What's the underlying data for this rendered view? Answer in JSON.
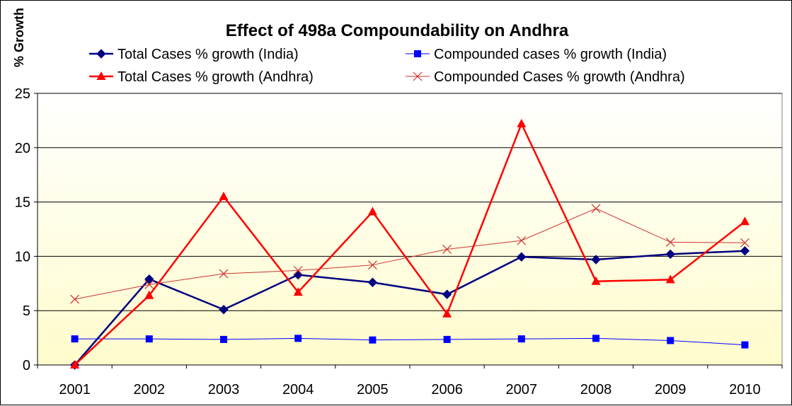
{
  "chart_data": {
    "type": "line",
    "title": "Effect of 498a Compoundability on Andhra",
    "xlabel": "",
    "ylabel": "% Growth",
    "ylim": [
      0,
      25
    ],
    "yticks": [
      "0",
      "5",
      "10",
      "15",
      "20",
      "25"
    ],
    "categories": [
      "2001",
      "2002",
      "2003",
      "2004",
      "2005",
      "2006",
      "2007",
      "2008",
      "2009",
      "2010"
    ],
    "grid": true,
    "legend_position": "top",
    "series": [
      {
        "name": "Total Cases % growth (India)",
        "color": "#000080",
        "marker": "diamond",
        "values": [
          0,
          7.9,
          5.1,
          8.3,
          7.6,
          6.5,
          9.95,
          9.7,
          10.2,
          10.5
        ]
      },
      {
        "name": "Compounded cases % growth (India)",
        "color": "#0000FF",
        "marker": "square",
        "values": [
          2.4,
          2.4,
          2.35,
          2.45,
          2.3,
          2.35,
          2.4,
          2.45,
          2.25,
          1.85
        ]
      },
      {
        "name": "Total Cases % growth (Andhra)",
        "color": "#FF0000",
        "marker": "triangle",
        "values": [
          0,
          6.4,
          15.5,
          6.7,
          14.1,
          4.7,
          22.2,
          7.7,
          7.85,
          13.2
        ]
      },
      {
        "name": "Compounded Cases % growth (Andhra)",
        "color": "#CC3333",
        "marker": "x",
        "values": [
          6.05,
          7.4,
          8.4,
          8.7,
          9.2,
          10.65,
          11.45,
          14.4,
          11.3,
          11.25
        ]
      }
    ]
  }
}
